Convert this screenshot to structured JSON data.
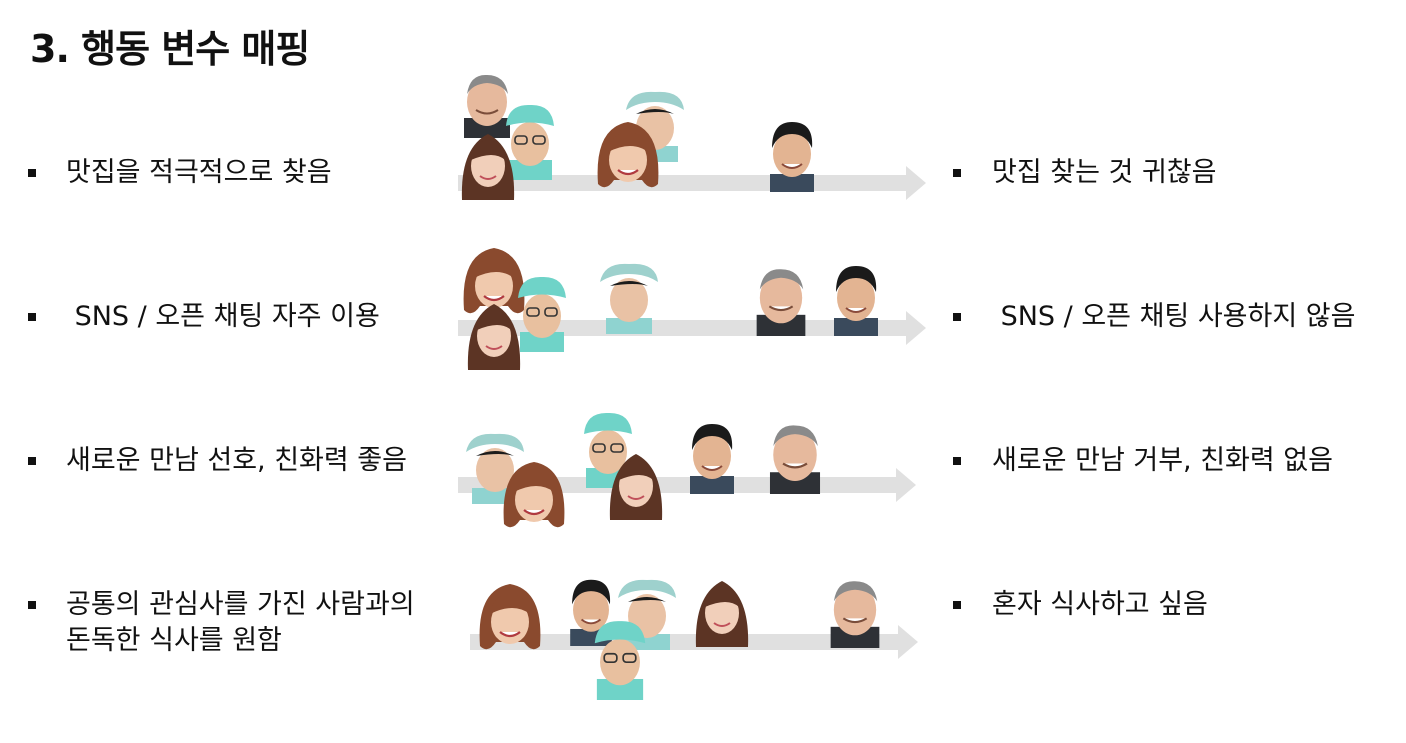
{
  "title": "3. 행동 변수 매핑",
  "colors": {
    "arrow": "#e0e0e0",
    "text": "#111111"
  },
  "rows": [
    {
      "left": "맛집을 적극적으로 찾음",
      "right": "맛집 찾는 것 귀찮음",
      "faces": [
        "older-man",
        "nurse-man",
        "young-woman",
        "nurse-woman",
        "bob-hair-woman",
        "short-hair-man"
      ]
    },
    {
      "left": " SNS / 오픈 채팅 자주 이용",
      "right": " SNS / 오픈 채팅 사용하지 않음",
      "faces": [
        "bob-hair-woman",
        "nurse-man",
        "young-woman",
        "nurse-woman",
        "older-man",
        "short-hair-man"
      ]
    },
    {
      "left": "새로운 만남 선호, 친화력 좋음",
      "right": "새로운 만남 거부, 친화력 없음",
      "faces": [
        "nurse-woman",
        "bob-hair-woman",
        "nurse-man",
        "young-woman",
        "short-hair-man",
        "older-man"
      ]
    },
    {
      "left_line1": "공통의 관심사를 가진 사람과의",
      "left_line2": "돈독한 식사를 원함",
      "right": "혼자 식사하고 싶음",
      "faces": [
        "bob-hair-woman",
        "short-hair-man",
        "nurse-woman",
        "nurse-man",
        "young-woman",
        "older-man"
      ]
    }
  ]
}
